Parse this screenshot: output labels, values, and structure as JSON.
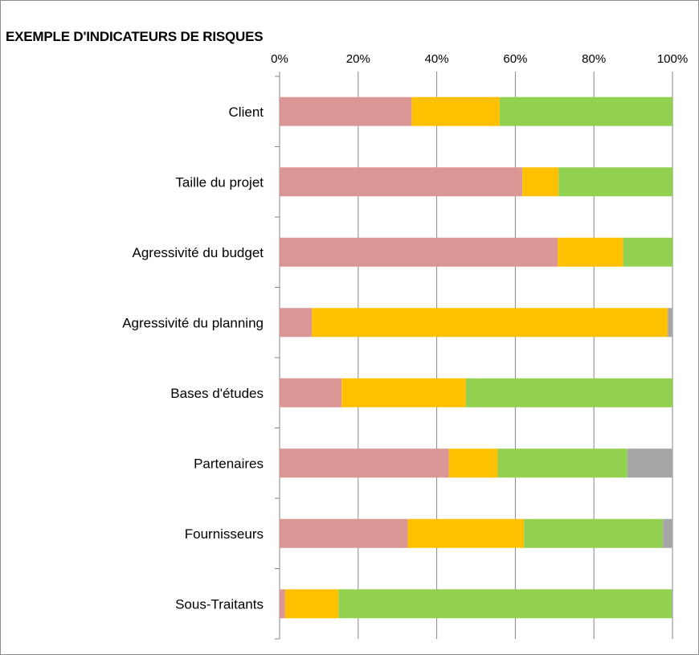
{
  "chart_data": {
    "type": "bar",
    "orientation": "horizontal",
    "stacked": "percent",
    "title": "EXEMPLE D'INDICATEURS  DE RISQUES",
    "categories": [
      "Client",
      "Taille du projet",
      "Agressivité du budget",
      "Agressivité du planning",
      "Bases d'études",
      "Partenaires",
      "Fournisseurs",
      "Sous-Traitants"
    ],
    "x_ticks": [
      "0%",
      "20%",
      "40%",
      "60%",
      "80%",
      "100%"
    ],
    "xlim": [
      0,
      100
    ],
    "x_axis_position": "top",
    "grid": true,
    "legend": "none",
    "series": [
      {
        "color": "#d99694",
        "values": [
          33.6,
          61.8,
          70.8,
          8.2,
          15.8,
          43.1,
          32.6,
          1.4
        ]
      },
      {
        "color": "#ffc000",
        "values": [
          22.4,
          9.2,
          16.6,
          90.6,
          31.6,
          12.4,
          29.6,
          13.6
        ]
      },
      {
        "color": "#92d050",
        "values": [
          44.0,
          29.0,
          12.6,
          0.0,
          52.6,
          33.0,
          35.4,
          84.8
        ]
      },
      {
        "color": "#a6a6a6",
        "values": [
          0.0,
          0.0,
          0.0,
          1.2,
          0.0,
          11.5,
          2.4,
          0.2
        ]
      }
    ]
  }
}
